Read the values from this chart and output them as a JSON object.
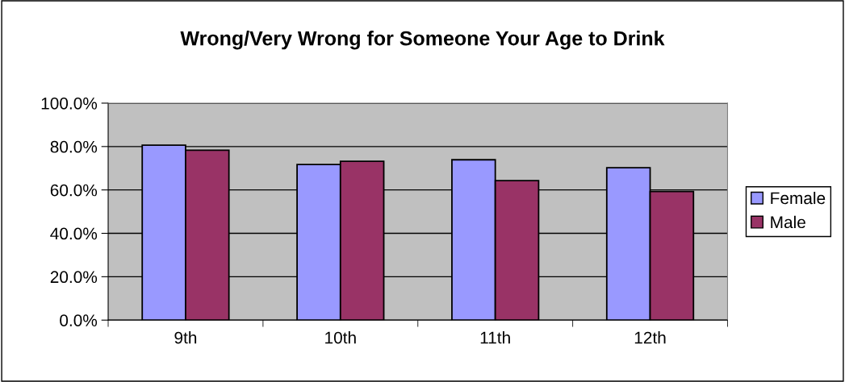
{
  "chart_data": {
    "type": "bar",
    "title": "Wrong/Very Wrong for Someone Your Age to Drink",
    "categories": [
      "9th",
      "10th",
      "11th",
      "12th"
    ],
    "series": [
      {
        "name": "Female",
        "color": "#9999ff",
        "values": [
          80.6,
          71.7,
          73.9,
          70.2
        ]
      },
      {
        "name": "Male",
        "color": "#993366",
        "values": [
          78.3,
          73.2,
          64.3,
          59.3
        ]
      }
    ],
    "ylim": [
      0,
      100
    ],
    "yticks": [
      {
        "value": 0,
        "label": "0.0%"
      },
      {
        "value": 20,
        "label": "20.0%"
      },
      {
        "value": 40,
        "label": "40.0%"
      },
      {
        "value": 60,
        "label": "60.0%"
      },
      {
        "value": 80,
        "label": "80.0%"
      },
      {
        "value": 100,
        "label": "100.0%"
      }
    ],
    "grid": "y",
    "legend": "right"
  }
}
